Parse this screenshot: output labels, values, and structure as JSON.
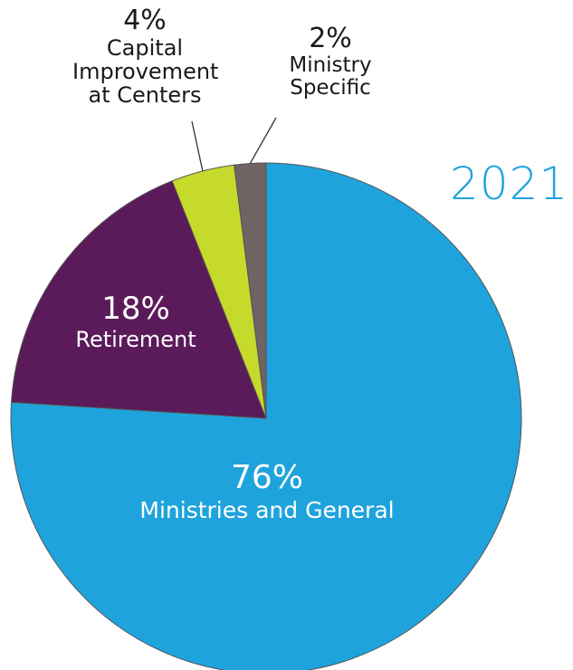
{
  "chart_data": {
    "type": "pie",
    "title": "2021",
    "slices": [
      {
        "label": "Ministries and General",
        "value": 76,
        "pct_text": "76%",
        "color": "#1fa3dc"
      },
      {
        "label": "Retirement",
        "value": 18,
        "pct_text": "18%",
        "color": "#5b1a5a"
      },
      {
        "label": "Capital Improvement at Centers",
        "value": 4,
        "pct_text": "4%",
        "color": "#c6da2c"
      },
      {
        "label": "Ministry Specific",
        "value": 2,
        "pct_text": "2%",
        "color": "#6f6463"
      }
    ]
  },
  "labels": {
    "capital_pct": "4%",
    "capital_name_lines": [
      "Capital",
      "Improvement",
      "at Centers"
    ],
    "ministry_pct": "2%",
    "ministry_name_lines": [
      "Ministry",
      "Specific"
    ],
    "retirement_pct": "18%",
    "retirement_name": "Retirement",
    "general_pct": "76%",
    "general_name": "Ministries and General"
  },
  "colors": {
    "stroke": "#555555",
    "leader": "#333333",
    "title": "#1fa3dc"
  }
}
